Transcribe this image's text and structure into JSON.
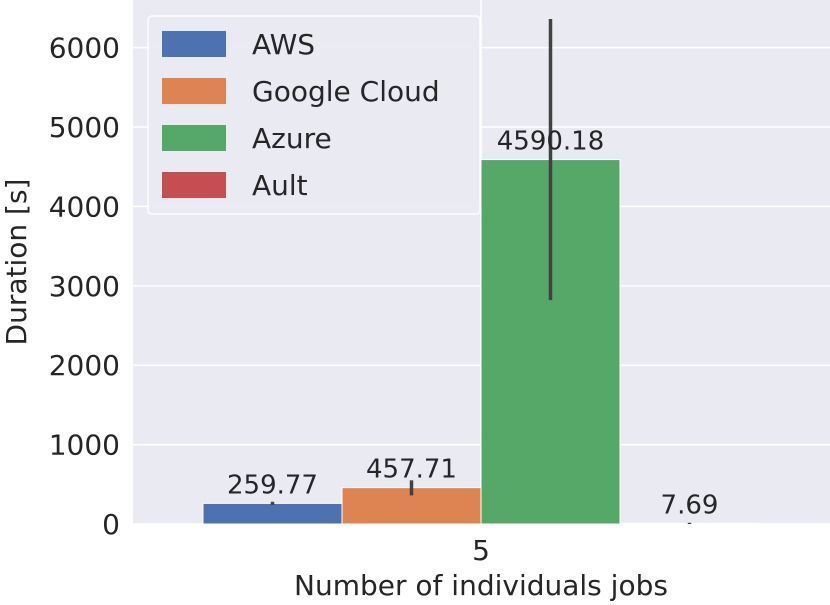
{
  "chart_data": {
    "type": "bar",
    "title": "",
    "xlabel": "Number of individuals jobs",
    "ylabel": "Duration [s]",
    "categories": [
      "5"
    ],
    "ylim": [
      0,
      6600
    ],
    "yticks": [
      0,
      1000,
      2000,
      3000,
      4000,
      5000,
      6000
    ],
    "grid": true,
    "legend_position": "top-left",
    "series": [
      {
        "name": "AWS",
        "color": "#4c72b0",
        "values": [
          259.77
        ],
        "label": "259.77",
        "error": [
          240,
          280
        ]
      },
      {
        "name": "Google Cloud",
        "color": "#dd8452",
        "values": [
          457.71
        ],
        "label": "457.71",
        "error": [
          360,
          550
        ]
      },
      {
        "name": "Azure",
        "color": "#55a868",
        "values": [
          4590.18
        ],
        "label": "4590.18",
        "error": [
          2820,
          6360
        ]
      },
      {
        "name": "Ault",
        "color": "#c44e52",
        "values": [
          7.69
        ],
        "label": "7.69",
        "error": [
          0,
          15
        ]
      }
    ]
  }
}
